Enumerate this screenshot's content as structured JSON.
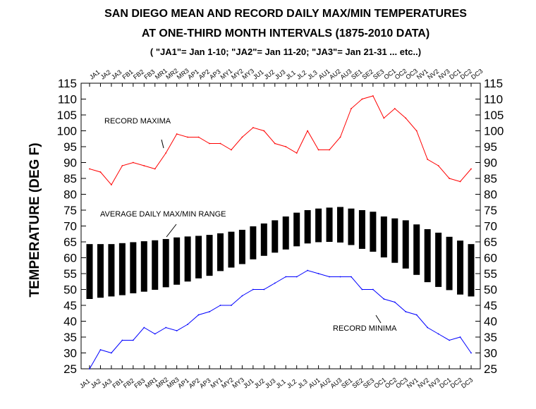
{
  "chart_data": {
    "type": "bar",
    "title_line1": "SAN DIEGO MEAN AND RECORD DAILY MAX/MIN TEMPERATURES",
    "title_line2": "AT ONE-THIRD MONTH INTERVALS (1875-2010 DATA)",
    "subtitle": "( \"JA1\"= Jan 1-10; \"JA2\"= Jan 11-20; \"JA3\"= Jan 21-31 ... etc..)",
    "ylabel": "TEMPERATURE  (DEG F)",
    "ylim": [
      25,
      115
    ],
    "yticks": [
      "25",
      "30",
      "35",
      "40",
      "45",
      "50",
      "55",
      "60",
      "65",
      "70",
      "75",
      "80",
      "85",
      "90",
      "95",
      "100",
      "105",
      "110",
      "115"
    ],
    "categories": [
      "JA1",
      "JA2",
      "JA3",
      "FB1",
      "FB2",
      "FB3",
      "MR1",
      "MR2",
      "MR3",
      "AP1",
      "AP2",
      "AP3",
      "MY1",
      "MY2",
      "MY3",
      "JU1",
      "JU2",
      "JU3",
      "JL1",
      "JL2",
      "JL3",
      "AU1",
      "AU2",
      "AU3",
      "SE1",
      "SE2",
      "SE3",
      "OC1",
      "OC2",
      "OC3",
      "NV1",
      "NV2",
      "NV3",
      "DC1",
      "DC2",
      "DC3"
    ],
    "series": [
      {
        "name": "RECORD MAXIMA",
        "kind": "line",
        "color": "#ff0000",
        "values": [
          88,
          87,
          83,
          89,
          90,
          89,
          88,
          93,
          99,
          98,
          98,
          96,
          96,
          94,
          98,
          101,
          100,
          96,
          95,
          93,
          100,
          94,
          94,
          98,
          107,
          110,
          111,
          104,
          107,
          104,
          100,
          91,
          89,
          85,
          84,
          88
        ]
      },
      {
        "name": "AVERAGE DAILY MAX/MIN RANGE",
        "kind": "range-bar",
        "color": "#000000",
        "high": [
          64.3,
          64.3,
          64.3,
          64.6,
          64.9,
          65.2,
          65.5,
          65.9,
          66.4,
          66.7,
          66.9,
          67.2,
          67.7,
          68.2,
          68.8,
          69.9,
          70.8,
          71.8,
          73.0,
          74.2,
          75.0,
          75.5,
          75.8,
          76.0,
          75.5,
          75.0,
          74.5,
          73.0,
          72.4,
          71.8,
          70.5,
          69.0,
          67.9,
          66.6,
          65.4,
          64.3
        ],
        "low": [
          47.0,
          47.4,
          47.8,
          48.2,
          48.8,
          49.3,
          49.9,
          50.7,
          51.5,
          52.5,
          53.5,
          54.3,
          55.8,
          56.9,
          58.0,
          59.5,
          60.6,
          61.6,
          62.6,
          63.6,
          64.5,
          64.9,
          65.0,
          64.8,
          64.0,
          62.8,
          61.9,
          60.1,
          58.4,
          56.6,
          54.6,
          52.3,
          50.8,
          49.8,
          48.4,
          47.8
        ]
      },
      {
        "name": "RECORD MINIMA",
        "kind": "line",
        "color": "#0000ff",
        "values": [
          25,
          31,
          30,
          34,
          34,
          38,
          36,
          38,
          37,
          39,
          42,
          43,
          45,
          45,
          48,
          50,
          50,
          52,
          54,
          54,
          56,
          55,
          54,
          54,
          54,
          50,
          50,
          47,
          46,
          43,
          42,
          38,
          36,
          34,
          35,
          30
        ]
      }
    ],
    "annotations": {
      "record_maxima": "RECORD MAXIMA",
      "avg_range": "AVERAGE DAILY MAX/MIN RANGE",
      "record_minima": "RECORD MINIMA"
    },
    "grid": false
  }
}
